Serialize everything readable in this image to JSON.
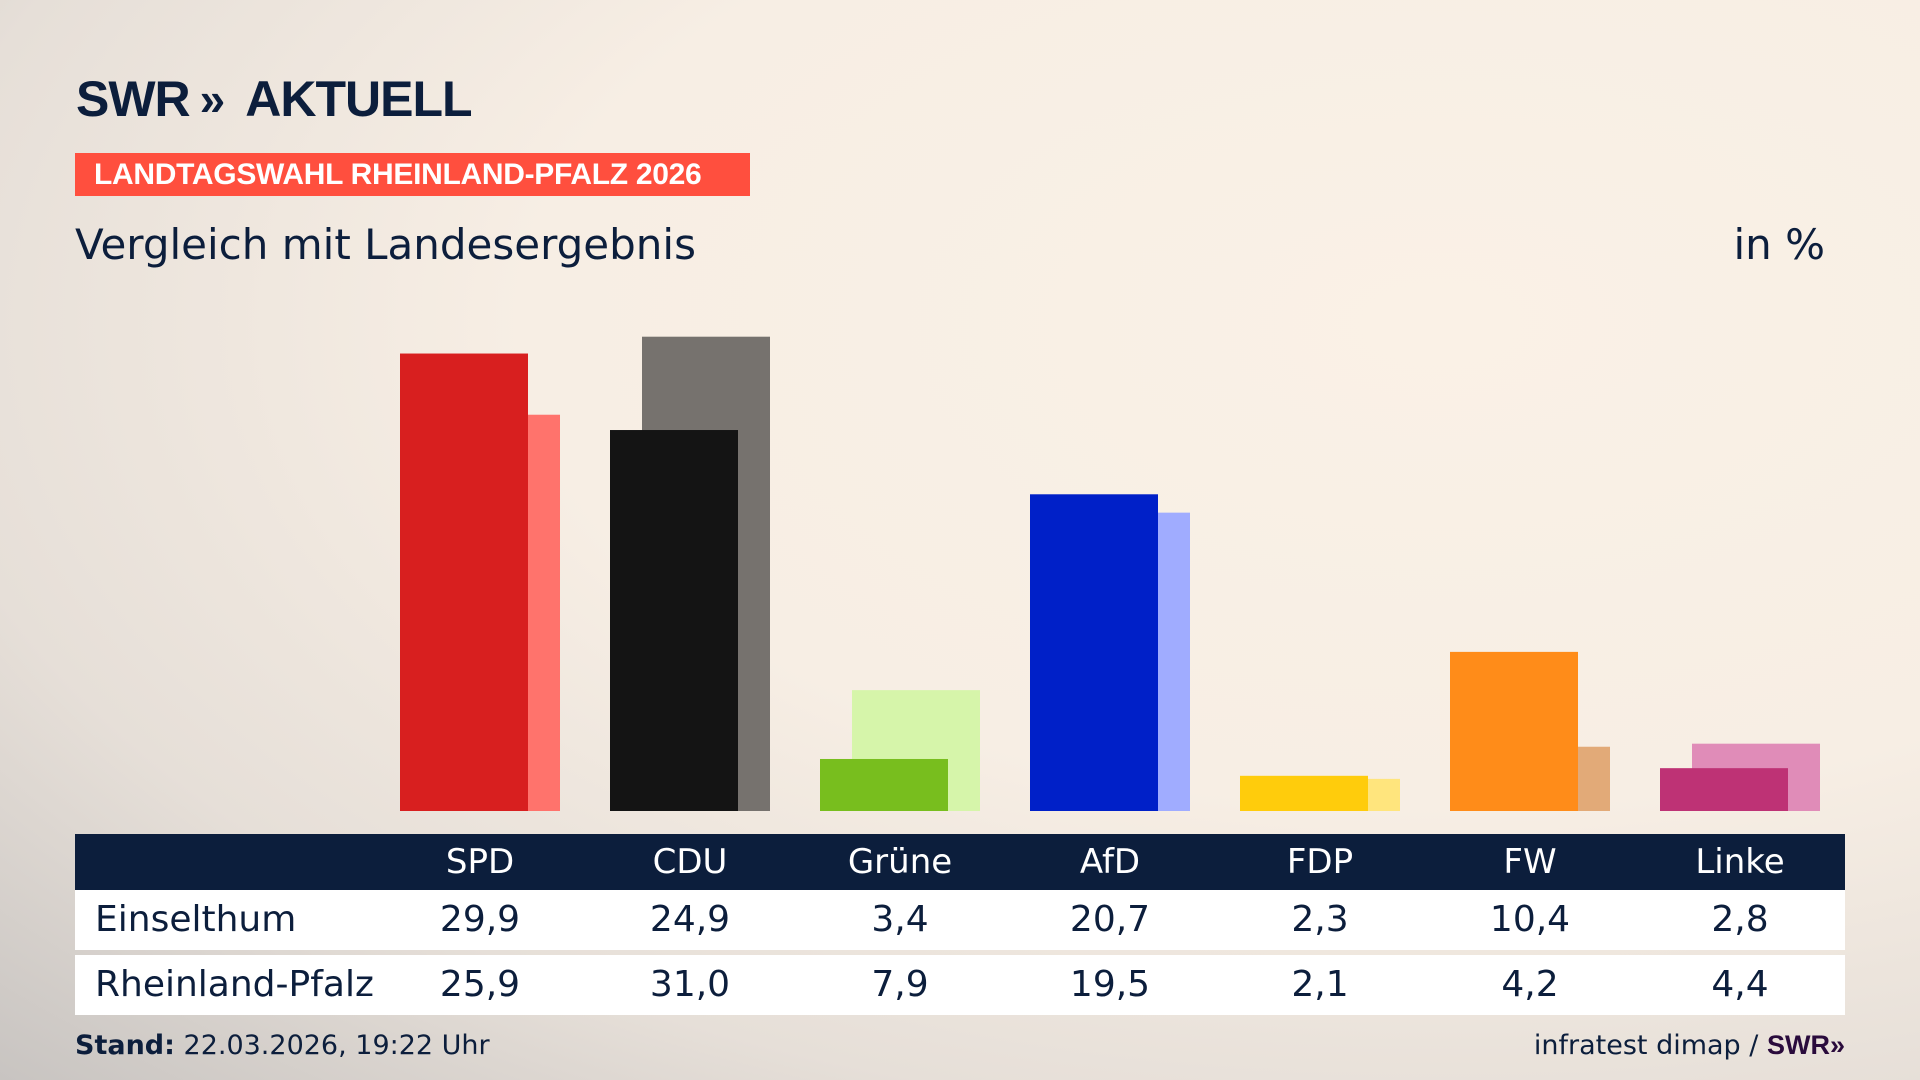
{
  "brand": {
    "logo_text": "SWR",
    "logo_suffix": "AKTUELL",
    "chevrons": "»"
  },
  "banner": "LANDTAGSWAHL RHEINLAND-PFALZ 2026",
  "subtitle": "Vergleich mit Landesergebnis",
  "unit": "in %",
  "chart_data": {
    "type": "bar",
    "categories": [
      "SPD",
      "CDU",
      "Grüne",
      "AfD",
      "FDP",
      "FW",
      "Linke"
    ],
    "series": [
      {
        "name": "Einselthum",
        "values": [
          29.9,
          24.9,
          3.4,
          20.7,
          2.3,
          10.4,
          2.8
        ],
        "labels": [
          "29,9",
          "24,9",
          "3,4",
          "20,7",
          "2,3",
          "10,4",
          "2,8"
        ]
      },
      {
        "name": "Rheinland-Pfalz",
        "values": [
          25.9,
          31.0,
          7.9,
          19.5,
          2.1,
          4.2,
          4.4
        ],
        "labels": [
          "25,9",
          "31,0",
          "7,9",
          "19,5",
          "2,1",
          "4,2",
          "4,4"
        ]
      }
    ],
    "colors_local": [
      "#d81f1f",
      "#141414",
      "#78be1e",
      "#0020c8",
      "#ffcc0c",
      "#ff8c19",
      "#be3275"
    ],
    "colors_state": [
      "#ff736c",
      "#76726e",
      "#d6f5aa",
      "#a0acff",
      "#ffe57d",
      "#e2aa78",
      "#e08cb8"
    ],
    "ylim": [
      0,
      31
    ],
    "grid": false,
    "legend": "table-below"
  },
  "footer": {
    "stand_label": "Stand:",
    "stand_value": "22.03.2026, 19:22 Uhr",
    "source": "infratest dimap /",
    "source_brand": "SWR»"
  }
}
